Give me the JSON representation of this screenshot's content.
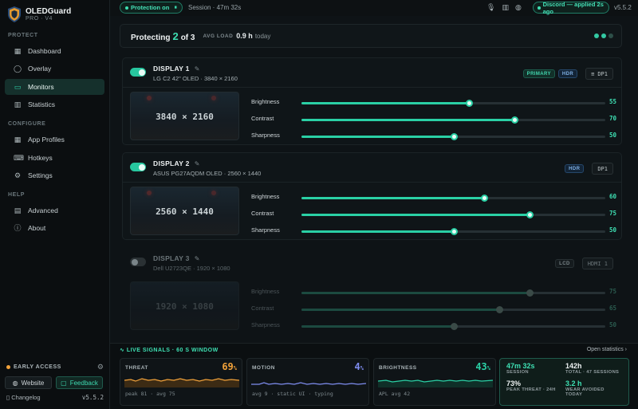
{
  "app": {
    "name": "OLEDGuard",
    "edition": "PRO · V4"
  },
  "sidebar": {
    "sections": [
      {
        "label": "PROTECT",
        "items": [
          {
            "label": "Dashboard",
            "icon": "grid-icon"
          },
          {
            "label": "Overlay",
            "icon": "circle-icon"
          },
          {
            "label": "Monitors",
            "icon": "monitor-icon",
            "active": true
          },
          {
            "label": "Statistics",
            "icon": "bar-chart-icon"
          }
        ]
      },
      {
        "label": "CONFIGURE",
        "items": [
          {
            "label": "App Profiles",
            "icon": "grid-icon"
          },
          {
            "label": "Hotkeys",
            "icon": "keyboard-icon"
          },
          {
            "label": "Settings",
            "icon": "gear-icon"
          }
        ]
      },
      {
        "label": "HELP",
        "items": [
          {
            "label": "Advanced",
            "icon": "document-icon"
          },
          {
            "label": "About",
            "icon": "info-icon"
          }
        ]
      }
    ],
    "early_access": "EARLY ACCESS",
    "website": "Website",
    "feedback": "Feedback",
    "changelog": "Changelog",
    "version": "v5.5.2"
  },
  "topbar": {
    "protection": "Protection on",
    "session": "Session · 47m 32s",
    "discord": "Discord — applied 2s ago",
    "version": "v5.5.2"
  },
  "summary": {
    "protecting_label": "Protecting",
    "protected_count": "2",
    "of_total": "of 3",
    "avg_load_label": "AVG LOAD",
    "avg_load_value": "0.9 h",
    "avg_load_unit": "today"
  },
  "displays": [
    {
      "title": "DISPLAY 1",
      "model": "LG C2 42\" OLED",
      "resolution": "3840 × 2160",
      "enabled": true,
      "badges": [
        "PRIMARY",
        "HDR"
      ],
      "port": "DP1",
      "sliders": [
        {
          "label": "Brightness",
          "value": 55
        },
        {
          "label": "Contrast",
          "value": 70
        },
        {
          "label": "Sharpness",
          "value": 50
        }
      ]
    },
    {
      "title": "DISPLAY 2",
      "model": "ASUS PG27AQDM OLED",
      "resolution": "2560 × 1440",
      "enabled": true,
      "badges": [
        "HDR"
      ],
      "port": "DP1",
      "sliders": [
        {
          "label": "Brightness",
          "value": 60
        },
        {
          "label": "Contrast",
          "value": 75
        },
        {
          "label": "Sharpness",
          "value": 50
        }
      ]
    },
    {
      "title": "DISPLAY 3",
      "model": "Dell U2723QE",
      "resolution": "1920 × 1080",
      "enabled": false,
      "badges": [
        "LCD"
      ],
      "port": "HDMI 1",
      "sliders": [
        {
          "label": "Brightness",
          "value": 75
        },
        {
          "label": "Contrast",
          "value": 65
        },
        {
          "label": "Sharpness",
          "value": 50
        }
      ]
    }
  ],
  "signals": {
    "header": "LIVE SIGNALS · 60 S WINDOW",
    "open": "Open statistics ›",
    "cards": [
      {
        "label": "THREAT",
        "value": "69",
        "unit": "%",
        "footer": "peak 81 · avg 75",
        "color": "#f2a23a"
      },
      {
        "label": "MOTION",
        "value": "4",
        "unit": "%",
        "footer": "avg 9 · static UI · typing",
        "color": "#7f8df0"
      },
      {
        "label": "BRIGHTNESS",
        "value": "43",
        "unit": "%",
        "footer": "APL avg 42",
        "color": "#2ad0a5"
      }
    ],
    "stats": [
      {
        "value": "47m 32s",
        "label": "SESSION"
      },
      {
        "value": "142h",
        "label": "TOTAL · 47 SESSIONS"
      },
      {
        "value": "73%",
        "label": "PEAK THREAT · 24H"
      },
      {
        "value": "3.2 h",
        "label": "WEAR AVOIDED"
      },
      {
        "value": "",
        "label": "TODAY"
      }
    ]
  }
}
